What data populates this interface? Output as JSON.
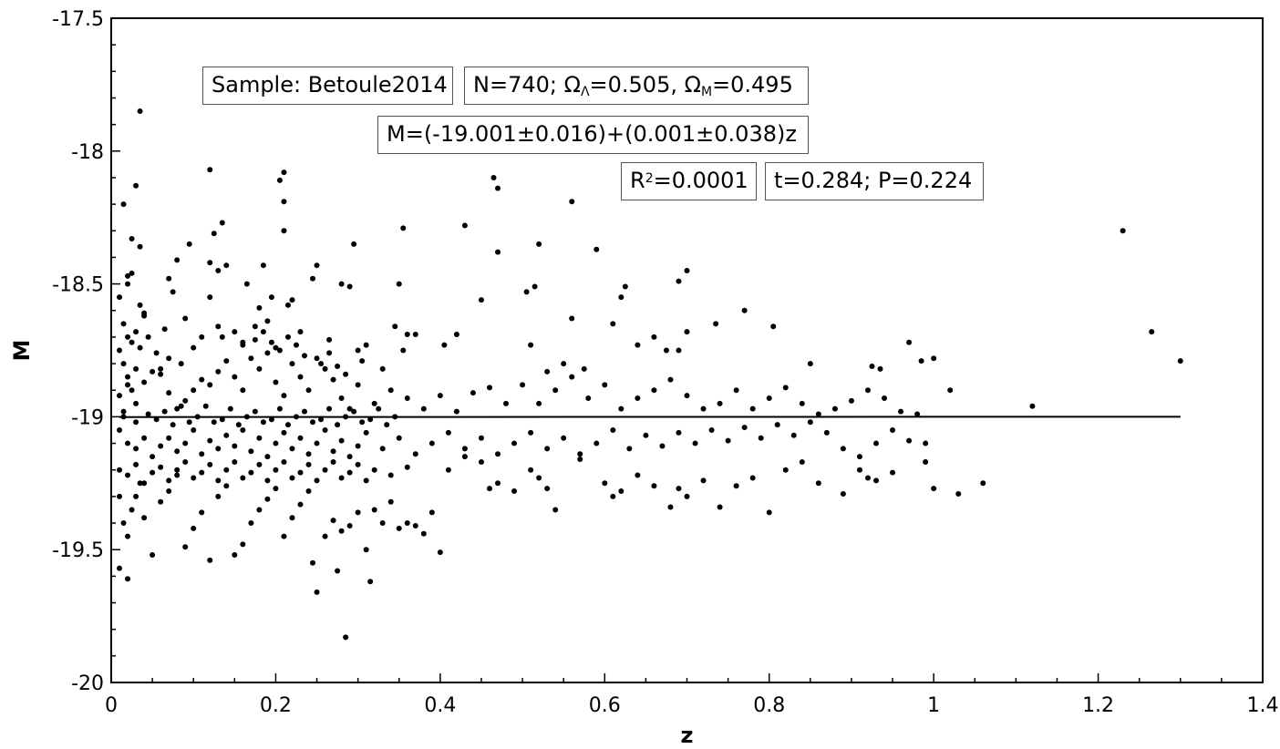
{
  "chart_data": {
    "type": "scatter",
    "xlabel": "z",
    "ylabel": "M",
    "xlim": [
      0,
      1.4
    ],
    "ylim": [
      -20,
      -17.5
    ],
    "x_ticks": [
      "0",
      "0.2",
      "0.4",
      "0.6",
      "0.8",
      "1",
      "1.2",
      "1.4"
    ],
    "y_ticks": [
      "-17.5",
      "-18",
      "-18.5",
      "-19",
      "-19.5",
      "-20"
    ],
    "grid": false,
    "fit_line": {
      "x": [
        0.01,
        1.3
      ],
      "y": [
        -19.001,
        -18.9997
      ]
    },
    "annotations": {
      "sample": "Sample: Betoule2014",
      "n_label": "N=740; Ω",
      "omega_lambda_sub": "Λ",
      "omega_lambda_val": "=0.505, Ω",
      "omega_m_sub": "M",
      "omega_m_val": "=0.495",
      "fit": "M=(-19.001±0.016)+(0.001±0.038)z",
      "r2_pre": "R",
      "r2_sup": "2",
      "r2_val": "=0.0001",
      "ttest": "t=0.284; P=0.224"
    },
    "points": [
      [
        0.035,
        -17.85
      ],
      [
        0.12,
        -18.07
      ],
      [
        0.21,
        -18.08
      ],
      [
        0.205,
        -18.11
      ],
      [
        0.03,
        -18.13
      ],
      [
        0.04,
        -18.61
      ],
      [
        0.015,
        -18.2
      ],
      [
        0.21,
        -18.19
      ],
      [
        0.125,
        -18.31
      ],
      [
        0.135,
        -18.27
      ],
      [
        0.025,
        -18.33
      ],
      [
        0.035,
        -18.36
      ],
      [
        0.095,
        -18.35
      ],
      [
        0.295,
        -18.35
      ],
      [
        0.21,
        -18.3
      ],
      [
        0.08,
        -18.41
      ],
      [
        0.12,
        -18.42
      ],
      [
        0.13,
        -18.45
      ],
      [
        0.14,
        -18.43
      ],
      [
        0.185,
        -18.43
      ],
      [
        0.245,
        -18.48
      ],
      [
        0.25,
        -18.43
      ],
      [
        0.02,
        -18.47
      ],
      [
        0.025,
        -18.46
      ],
      [
        0.07,
        -18.48
      ],
      [
        0.165,
        -18.5
      ],
      [
        0.28,
        -18.5
      ],
      [
        0.29,
        -18.51
      ],
      [
        0.02,
        -18.5
      ],
      [
        0.075,
        -18.53
      ],
      [
        0.12,
        -18.55
      ],
      [
        0.22,
        -18.56
      ],
      [
        0.215,
        -18.58
      ],
      [
        0.18,
        -18.59
      ],
      [
        0.195,
        -18.55
      ],
      [
        0.035,
        -18.58
      ],
      [
        0.01,
        -18.55
      ],
      [
        0.04,
        -18.62
      ],
      [
        0.065,
        -18.67
      ],
      [
        0.09,
        -18.63
      ],
      [
        0.13,
        -18.66
      ],
      [
        0.135,
        -18.7
      ],
      [
        0.16,
        -18.72
      ],
      [
        0.175,
        -18.66
      ],
      [
        0.19,
        -18.64
      ],
      [
        0.2,
        -18.74
      ],
      [
        0.23,
        -18.68
      ],
      [
        0.265,
        -18.71
      ],
      [
        0.3,
        -18.75
      ],
      [
        0.31,
        -18.73
      ],
      [
        0.345,
        -18.66
      ],
      [
        0.36,
        -18.69
      ],
      [
        0.37,
        -18.69
      ],
      [
        0.33,
        -18.82
      ],
      [
        0.355,
        -18.75
      ],
      [
        0.35,
        -18.5
      ],
      [
        0.355,
        -18.29
      ],
      [
        0.43,
        -18.28
      ],
      [
        0.465,
        -18.1
      ],
      [
        0.47,
        -18.14
      ],
      [
        0.47,
        -18.38
      ],
      [
        0.52,
        -18.35
      ],
      [
        0.56,
        -18.19
      ],
      [
        0.59,
        -18.37
      ],
      [
        0.405,
        -18.73
      ],
      [
        0.42,
        -18.69
      ],
      [
        0.45,
        -18.56
      ],
      [
        0.505,
        -18.53
      ],
      [
        0.515,
        -18.51
      ],
      [
        0.51,
        -18.73
      ],
      [
        0.53,
        -18.83
      ],
      [
        0.55,
        -18.8
      ],
      [
        0.56,
        -18.63
      ],
      [
        0.575,
        -18.82
      ],
      [
        0.61,
        -18.65
      ],
      [
        0.62,
        -18.55
      ],
      [
        0.625,
        -18.51
      ],
      [
        0.64,
        -18.73
      ],
      [
        0.66,
        -18.7
      ],
      [
        0.675,
        -18.75
      ],
      [
        0.69,
        -18.75
      ],
      [
        0.69,
        -18.49
      ],
      [
        0.7,
        -18.45
      ],
      [
        0.7,
        -18.68
      ],
      [
        0.735,
        -18.65
      ],
      [
        0.77,
        -18.6
      ],
      [
        0.805,
        -18.66
      ],
      [
        0.85,
        -18.8
      ],
      [
        0.925,
        -18.81
      ],
      [
        0.935,
        -18.82
      ],
      [
        0.97,
        -18.72
      ],
      [
        0.985,
        -18.79
      ],
      [
        1.0,
        -18.78
      ],
      [
        1.02,
        -18.9
      ],
      [
        1.12,
        -18.96
      ],
      [
        1.23,
        -18.3
      ],
      [
        1.265,
        -18.68
      ],
      [
        1.3,
        -18.79
      ],
      [
        0.01,
        -18.75
      ],
      [
        0.015,
        -18.8
      ],
      [
        0.02,
        -18.85
      ],
      [
        0.025,
        -18.9
      ],
      [
        0.03,
        -18.95
      ],
      [
        0.015,
        -18.98
      ],
      [
        0.01,
        -18.92
      ],
      [
        0.02,
        -18.88
      ],
      [
        0.03,
        -18.82
      ],
      [
        0.04,
        -18.87
      ],
      [
        0.05,
        -18.83
      ],
      [
        0.06,
        -18.84
      ],
      [
        0.07,
        -18.91
      ],
      [
        0.08,
        -18.97
      ],
      [
        0.09,
        -18.94
      ],
      [
        0.1,
        -18.9
      ],
      [
        0.11,
        -18.86
      ],
      [
        0.12,
        -18.88
      ],
      [
        0.13,
        -18.83
      ],
      [
        0.14,
        -18.79
      ],
      [
        0.15,
        -18.85
      ],
      [
        0.16,
        -18.9
      ],
      [
        0.17,
        -18.78
      ],
      [
        0.18,
        -18.82
      ],
      [
        0.19,
        -18.76
      ],
      [
        0.2,
        -18.87
      ],
      [
        0.21,
        -18.92
      ],
      [
        0.22,
        -18.8
      ],
      [
        0.23,
        -18.85
      ],
      [
        0.24,
        -18.9
      ],
      [
        0.25,
        -18.78
      ],
      [
        0.26,
        -18.82
      ],
      [
        0.27,
        -18.86
      ],
      [
        0.28,
        -18.93
      ],
      [
        0.29,
        -18.97
      ],
      [
        0.3,
        -18.88
      ],
      [
        0.32,
        -18.95
      ],
      [
        0.34,
        -18.9
      ],
      [
        0.36,
        -18.93
      ],
      [
        0.38,
        -18.97
      ],
      [
        0.4,
        -18.92
      ],
      [
        0.42,
        -18.98
      ],
      [
        0.44,
        -18.91
      ],
      [
        0.46,
        -18.89
      ],
      [
        0.48,
        -18.95
      ],
      [
        0.5,
        -18.88
      ],
      [
        0.52,
        -18.95
      ],
      [
        0.54,
        -18.9
      ],
      [
        0.56,
        -18.85
      ],
      [
        0.58,
        -18.93
      ],
      [
        0.6,
        -18.88
      ],
      [
        0.62,
        -18.97
      ],
      [
        0.64,
        -18.93
      ],
      [
        0.66,
        -18.9
      ],
      [
        0.68,
        -18.86
      ],
      [
        0.7,
        -18.92
      ],
      [
        0.72,
        -18.97
      ],
      [
        0.74,
        -18.95
      ],
      [
        0.76,
        -18.9
      ],
      [
        0.78,
        -18.97
      ],
      [
        0.8,
        -18.93
      ],
      [
        0.82,
        -18.89
      ],
      [
        0.84,
        -18.95
      ],
      [
        0.86,
        -18.99
      ],
      [
        0.88,
        -18.97
      ],
      [
        0.9,
        -18.94
      ],
      [
        0.92,
        -18.9
      ],
      [
        0.94,
        -18.93
      ],
      [
        0.96,
        -18.98
      ],
      [
        0.98,
        -18.99
      ],
      [
        0.01,
        -19.05
      ],
      [
        0.02,
        -19.1
      ],
      [
        0.03,
        -19.12
      ],
      [
        0.04,
        -19.08
      ],
      [
        0.05,
        -19.15
      ],
      [
        0.06,
        -19.11
      ],
      [
        0.07,
        -19.08
      ],
      [
        0.08,
        -19.13
      ],
      [
        0.09,
        -19.1
      ],
      [
        0.1,
        -19.05
      ],
      [
        0.11,
        -19.14
      ],
      [
        0.12,
        -19.09
      ],
      [
        0.13,
        -19.12
      ],
      [
        0.14,
        -19.07
      ],
      [
        0.15,
        -19.11
      ],
      [
        0.16,
        -19.05
      ],
      [
        0.17,
        -19.13
      ],
      [
        0.18,
        -19.08
      ],
      [
        0.19,
        -19.15
      ],
      [
        0.2,
        -19.1
      ],
      [
        0.21,
        -19.06
      ],
      [
        0.22,
        -19.12
      ],
      [
        0.23,
        -19.08
      ],
      [
        0.24,
        -19.14
      ],
      [
        0.25,
        -19.1
      ],
      [
        0.26,
        -19.05
      ],
      [
        0.27,
        -19.13
      ],
      [
        0.28,
        -19.09
      ],
      [
        0.29,
        -19.15
      ],
      [
        0.3,
        -19.11
      ],
      [
        0.31,
        -19.06
      ],
      [
        0.33,
        -19.12
      ],
      [
        0.35,
        -19.08
      ],
      [
        0.37,
        -19.14
      ],
      [
        0.39,
        -19.1
      ],
      [
        0.41,
        -19.06
      ],
      [
        0.43,
        -19.12
      ],
      [
        0.45,
        -19.08
      ],
      [
        0.47,
        -19.14
      ],
      [
        0.49,
        -19.1
      ],
      [
        0.51,
        -19.06
      ],
      [
        0.53,
        -19.12
      ],
      [
        0.55,
        -19.08
      ],
      [
        0.57,
        -19.14
      ],
      [
        0.59,
        -19.1
      ],
      [
        0.61,
        -19.05
      ],
      [
        0.63,
        -19.12
      ],
      [
        0.65,
        -19.07
      ],
      [
        0.67,
        -19.11
      ],
      [
        0.69,
        -19.06
      ],
      [
        0.71,
        -19.1
      ],
      [
        0.73,
        -19.05
      ],
      [
        0.75,
        -19.09
      ],
      [
        0.77,
        -19.04
      ],
      [
        0.79,
        -19.08
      ],
      [
        0.81,
        -19.03
      ],
      [
        0.83,
        -19.07
      ],
      [
        0.85,
        -19.02
      ],
      [
        0.87,
        -19.06
      ],
      [
        0.89,
        -19.12
      ],
      [
        0.91,
        -19.15
      ],
      [
        0.93,
        -19.1
      ],
      [
        0.95,
        -19.05
      ],
      [
        0.97,
        -19.09
      ],
      [
        0.99,
        -19.1
      ],
      [
        0.01,
        -19.3
      ],
      [
        0.015,
        -19.4
      ],
      [
        0.02,
        -19.45
      ],
      [
        0.01,
        -19.57
      ],
      [
        0.02,
        -19.61
      ],
      [
        0.025,
        -19.35
      ],
      [
        0.03,
        -19.3
      ],
      [
        0.035,
        -19.25
      ],
      [
        0.04,
        -19.38
      ],
      [
        0.05,
        -19.52
      ],
      [
        0.06,
        -19.32
      ],
      [
        0.07,
        -19.28
      ],
      [
        0.08,
        -19.22
      ],
      [
        0.09,
        -19.49
      ],
      [
        0.1,
        -19.42
      ],
      [
        0.11,
        -19.36
      ],
      [
        0.12,
        -19.54
      ],
      [
        0.13,
        -19.3
      ],
      [
        0.14,
        -19.26
      ],
      [
        0.15,
        -19.52
      ],
      [
        0.16,
        -19.48
      ],
      [
        0.17,
        -19.4
      ],
      [
        0.18,
        -19.35
      ],
      [
        0.19,
        -19.31
      ],
      [
        0.2,
        -19.27
      ],
      [
        0.21,
        -19.45
      ],
      [
        0.22,
        -19.38
      ],
      [
        0.23,
        -19.33
      ],
      [
        0.24,
        -19.28
      ],
      [
        0.245,
        -19.55
      ],
      [
        0.25,
        -19.66
      ],
      [
        0.26,
        -19.45
      ],
      [
        0.27,
        -19.39
      ],
      [
        0.275,
        -19.58
      ],
      [
        0.28,
        -19.43
      ],
      [
        0.285,
        -19.83
      ],
      [
        0.29,
        -19.41
      ],
      [
        0.3,
        -19.36
      ],
      [
        0.31,
        -19.5
      ],
      [
        0.315,
        -19.62
      ],
      [
        0.32,
        -19.35
      ],
      [
        0.33,
        -19.4
      ],
      [
        0.34,
        -19.32
      ],
      [
        0.35,
        -19.42
      ],
      [
        0.36,
        -19.4
      ],
      [
        0.37,
        -19.41
      ],
      [
        0.38,
        -19.44
      ],
      [
        0.39,
        -19.36
      ],
      [
        0.4,
        -19.51
      ],
      [
        0.41,
        -19.2
      ],
      [
        0.43,
        -19.15
      ],
      [
        0.45,
        -19.17
      ],
      [
        0.46,
        -19.27
      ],
      [
        0.47,
        -19.25
      ],
      [
        0.49,
        -19.28
      ],
      [
        0.51,
        -19.2
      ],
      [
        0.52,
        -19.23
      ],
      [
        0.53,
        -19.27
      ],
      [
        0.54,
        -19.35
      ],
      [
        0.57,
        -19.16
      ],
      [
        0.6,
        -19.25
      ],
      [
        0.61,
        -19.3
      ],
      [
        0.62,
        -19.28
      ],
      [
        0.64,
        -19.22
      ],
      [
        0.66,
        -19.26
      ],
      [
        0.68,
        -19.34
      ],
      [
        0.69,
        -19.27
      ],
      [
        0.7,
        -19.3
      ],
      [
        0.72,
        -19.24
      ],
      [
        0.74,
        -19.34
      ],
      [
        0.76,
        -19.26
      ],
      [
        0.78,
        -19.23
      ],
      [
        0.8,
        -19.36
      ],
      [
        0.82,
        -19.2
      ],
      [
        0.84,
        -19.17
      ],
      [
        0.86,
        -19.25
      ],
      [
        0.89,
        -19.29
      ],
      [
        0.91,
        -19.2
      ],
      [
        0.92,
        -19.23
      ],
      [
        0.93,
        -19.24
      ],
      [
        0.95,
        -19.21
      ],
      [
        0.99,
        -19.17
      ],
      [
        1.0,
        -19.27
      ],
      [
        1.03,
        -19.29
      ],
      [
        1.06,
        -19.25
      ],
      [
        0.015,
        -18.65
      ],
      [
        0.02,
        -18.7
      ],
      [
        0.025,
        -18.72
      ],
      [
        0.03,
        -18.68
      ],
      [
        0.035,
        -18.74
      ],
      [
        0.045,
        -18.7
      ],
      [
        0.055,
        -18.76
      ],
      [
        0.06,
        -18.82
      ],
      [
        0.07,
        -18.78
      ],
      [
        0.085,
        -18.8
      ],
      [
        0.1,
        -18.74
      ],
      [
        0.11,
        -18.7
      ],
      [
        0.15,
        -18.68
      ],
      [
        0.16,
        -18.73
      ],
      [
        0.175,
        -18.71
      ],
      [
        0.185,
        -18.68
      ],
      [
        0.195,
        -18.72
      ],
      [
        0.205,
        -18.75
      ],
      [
        0.215,
        -18.7
      ],
      [
        0.225,
        -18.73
      ],
      [
        0.235,
        -18.77
      ],
      [
        0.255,
        -18.8
      ],
      [
        0.265,
        -18.76
      ],
      [
        0.275,
        -18.81
      ],
      [
        0.285,
        -18.84
      ],
      [
        0.305,
        -18.79
      ],
      [
        0.015,
        -19.0
      ],
      [
        0.03,
        -19.02
      ],
      [
        0.045,
        -18.99
      ],
      [
        0.055,
        -19.01
      ],
      [
        0.065,
        -18.98
      ],
      [
        0.075,
        -19.03
      ],
      [
        0.085,
        -18.96
      ],
      [
        0.095,
        -19.02
      ],
      [
        0.105,
        -19.0
      ],
      [
        0.115,
        -18.96
      ],
      [
        0.125,
        -19.02
      ],
      [
        0.135,
        -19.01
      ],
      [
        0.145,
        -18.97
      ],
      [
        0.155,
        -19.03
      ],
      [
        0.165,
        -19.0
      ],
      [
        0.175,
        -18.98
      ],
      [
        0.185,
        -19.02
      ],
      [
        0.195,
        -19.01
      ],
      [
        0.205,
        -18.97
      ],
      [
        0.215,
        -19.03
      ],
      [
        0.225,
        -19.0
      ],
      [
        0.235,
        -18.98
      ],
      [
        0.245,
        -19.02
      ],
      [
        0.255,
        -19.01
      ],
      [
        0.265,
        -18.97
      ],
      [
        0.275,
        -19.03
      ],
      [
        0.285,
        -19.0
      ],
      [
        0.295,
        -18.98
      ],
      [
        0.305,
        -19.02
      ],
      [
        0.315,
        -19.01
      ],
      [
        0.325,
        -18.97
      ],
      [
        0.335,
        -19.03
      ],
      [
        0.345,
        -19.0
      ],
      [
        0.01,
        -19.2
      ],
      [
        0.02,
        -19.22
      ],
      [
        0.03,
        -19.18
      ],
      [
        0.04,
        -19.25
      ],
      [
        0.05,
        -19.21
      ],
      [
        0.06,
        -19.19
      ],
      [
        0.07,
        -19.24
      ],
      [
        0.08,
        -19.2
      ],
      [
        0.09,
        -19.17
      ],
      [
        0.1,
        -19.23
      ],
      [
        0.11,
        -19.21
      ],
      [
        0.12,
        -19.18
      ],
      [
        0.13,
        -19.24
      ],
      [
        0.14,
        -19.2
      ],
      [
        0.15,
        -19.17
      ],
      [
        0.16,
        -19.23
      ],
      [
        0.17,
        -19.21
      ],
      [
        0.18,
        -19.18
      ],
      [
        0.19,
        -19.24
      ],
      [
        0.2,
        -19.2
      ],
      [
        0.21,
        -19.17
      ],
      [
        0.22,
        -19.23
      ],
      [
        0.23,
        -19.21
      ],
      [
        0.24,
        -19.18
      ],
      [
        0.25,
        -19.24
      ],
      [
        0.26,
        -19.2
      ],
      [
        0.27,
        -19.17
      ],
      [
        0.28,
        -19.23
      ],
      [
        0.29,
        -19.21
      ],
      [
        0.3,
        -19.18
      ],
      [
        0.31,
        -19.24
      ],
      [
        0.32,
        -19.2
      ],
      [
        0.34,
        -19.22
      ],
      [
        0.36,
        -19.19
      ]
    ]
  }
}
